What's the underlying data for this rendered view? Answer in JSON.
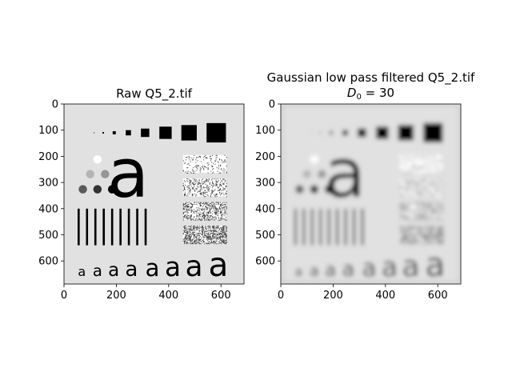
{
  "chart_data": [
    {
      "type": "image",
      "title": "Raw Q5_2.tif",
      "xlim": [
        0,
        688
      ],
      "ylim": [
        688,
        0
      ],
      "xticks": [
        "0",
        "200",
        "400",
        "600"
      ],
      "yticks": [
        "0",
        "100",
        "200",
        "300",
        "400",
        "500",
        "600"
      ],
      "content": {
        "squares": [
          {
            "x": 115,
            "y": 110,
            "size": 3
          },
          {
            "x": 150,
            "y": 110,
            "size": 6
          },
          {
            "x": 192,
            "y": 110,
            "size": 12
          },
          {
            "x": 246,
            "y": 110,
            "size": 20
          },
          {
            "x": 310,
            "y": 110,
            "size": 32
          },
          {
            "x": 388,
            "y": 110,
            "size": 47
          },
          {
            "x": 478,
            "y": 110,
            "size": 59
          },
          {
            "x": 582,
            "y": 110,
            "size": 74
          }
        ],
        "circles": [
          {
            "x": 128,
            "y": 212,
            "r": 16,
            "gray": "#ffffff"
          },
          {
            "x": 100,
            "y": 268,
            "r": 16,
            "gray": "#b4b4b4"
          },
          {
            "x": 157,
            "y": 268,
            "r": 16,
            "gray": "#969696"
          },
          {
            "x": 72,
            "y": 326,
            "r": 16,
            "gray": "#5a5a5a"
          },
          {
            "x": 128,
            "y": 326,
            "r": 16,
            "gray": "#323232"
          },
          {
            "x": 184,
            "y": 326,
            "r": 16,
            "gray": "#000000"
          }
        ],
        "big_letter": {
          "x": 245,
          "y": 355,
          "size": 260
        },
        "bars_x": [
          56,
          88,
          120,
          152,
          184,
          216,
          248,
          280,
          312
        ],
        "bars_y": [
          400,
          540
        ],
        "bars_width": 8,
        "noise_panels": [
          {
            "y": 195,
            "density": 0.25
          },
          {
            "y": 285,
            "density": 0.45
          },
          {
            "y": 375,
            "density": 0.65
          },
          {
            "y": 465,
            "density": 0.85
          }
        ],
        "noise_x": [
          455,
          620
        ],
        "noise_h": 68,
        "letters": [
          {
            "x": 68,
            "size": 50
          },
          {
            "x": 128,
            "size": 60
          },
          {
            "x": 190,
            "size": 70
          },
          {
            "x": 258,
            "size": 80
          },
          {
            "x": 338,
            "size": 90
          },
          {
            "x": 416,
            "size": 100
          },
          {
            "x": 497,
            "size": 110
          },
          {
            "x": 590,
            "size": 124
          }
        ],
        "letter_baseline": 658,
        "letter_char": "a"
      },
      "blurred": false
    },
    {
      "type": "image",
      "title": "Gaussian low pass filtered Q5_2.tif",
      "title_line2": "D_0 = 30",
      "xlim": [
        0,
        688
      ],
      "ylim": [
        688,
        0
      ],
      "xticks": [
        "0",
        "200",
        "400",
        "600"
      ],
      "yticks": [
        "0",
        "100",
        "200",
        "300",
        "400",
        "500",
        "600"
      ],
      "blurred": true
    }
  ]
}
